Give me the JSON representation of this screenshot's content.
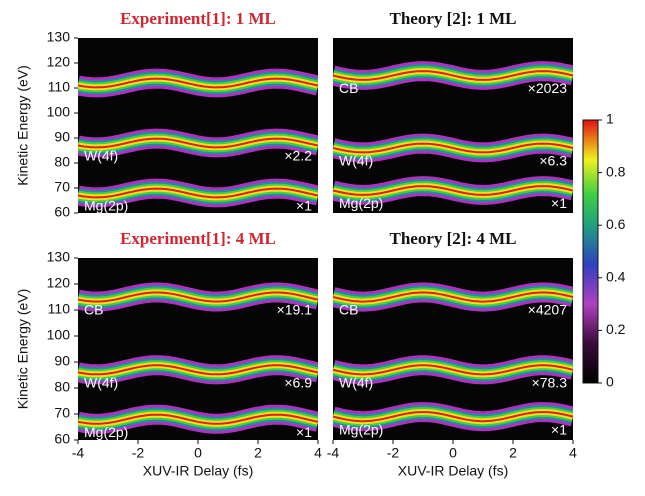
{
  "chart_data": [
    {
      "type": "heatmap",
      "title": "Experiment[1]: 1 ML",
      "title_color": "#d22630",
      "ylabel": "Kinetic Energy (eV)",
      "xlim": [
        -4,
        4
      ],
      "ylim": [
        60,
        130
      ],
      "yticks": [
        60,
        70,
        80,
        90,
        100,
        110,
        120,
        130
      ],
      "bands": [
        {
          "energy": 112
        },
        {
          "label": "W(4f)",
          "scale": "×2.2",
          "energy": 88
        },
        {
          "label": "Mg(2p)",
          "scale": "×1",
          "energy": 68
        }
      ]
    },
    {
      "type": "heatmap",
      "title": "Theory [2]: 1 ML",
      "title_color": "#111111",
      "xlim": [
        -4,
        4
      ],
      "ylim": [
        60,
        130
      ],
      "bands": [
        {
          "label": "CB",
          "scale": "×2023",
          "energy": 115
        },
        {
          "label": "W(4f)",
          "scale": "×6.3",
          "energy": 86
        },
        {
          "label": "Mg(2p)",
          "scale": "×1",
          "energy": 69
        }
      ]
    },
    {
      "type": "heatmap",
      "title": "Experiment[1]: 4 ML",
      "title_color": "#d22630",
      "ylabel": "Kinetic Energy (eV)",
      "xlabel": "XUV-IR Delay (fs)",
      "xlim": [
        -4,
        4
      ],
      "ylim": [
        60,
        130
      ],
      "xticks": [
        -4,
        -2,
        0,
        2,
        4
      ],
      "yticks": [
        60,
        70,
        80,
        90,
        100,
        110,
        120,
        130
      ],
      "bands": [
        {
          "label": "CB",
          "scale": "×19.1",
          "energy": 115
        },
        {
          "label": "W(4f)",
          "scale": "×6.9",
          "energy": 87
        },
        {
          "label": "Mg(2p)",
          "scale": "×1",
          "energy": 68
        }
      ]
    },
    {
      "type": "heatmap",
      "title": "Theory [2]: 4 ML",
      "title_color": "#111111",
      "xlabel": "XUV-IR Delay (fs)",
      "xlim": [
        -4,
        4
      ],
      "ylim": [
        60,
        130
      ],
      "xticks": [
        -4,
        -2,
        0,
        2,
        4
      ],
      "bands": [
        {
          "label": "CB",
          "scale": "×4207",
          "energy": 115
        },
        {
          "label": "W(4f)",
          "scale": "×78.3",
          "energy": 87
        },
        {
          "label": "Mg(2p)",
          "scale": "×1",
          "energy": 69
        }
      ]
    },
    {
      "type": "colorbar",
      "ylim": [
        0,
        1
      ],
      "yticks": [
        0,
        0.2,
        0.4,
        0.6,
        0.8,
        1
      ]
    }
  ]
}
